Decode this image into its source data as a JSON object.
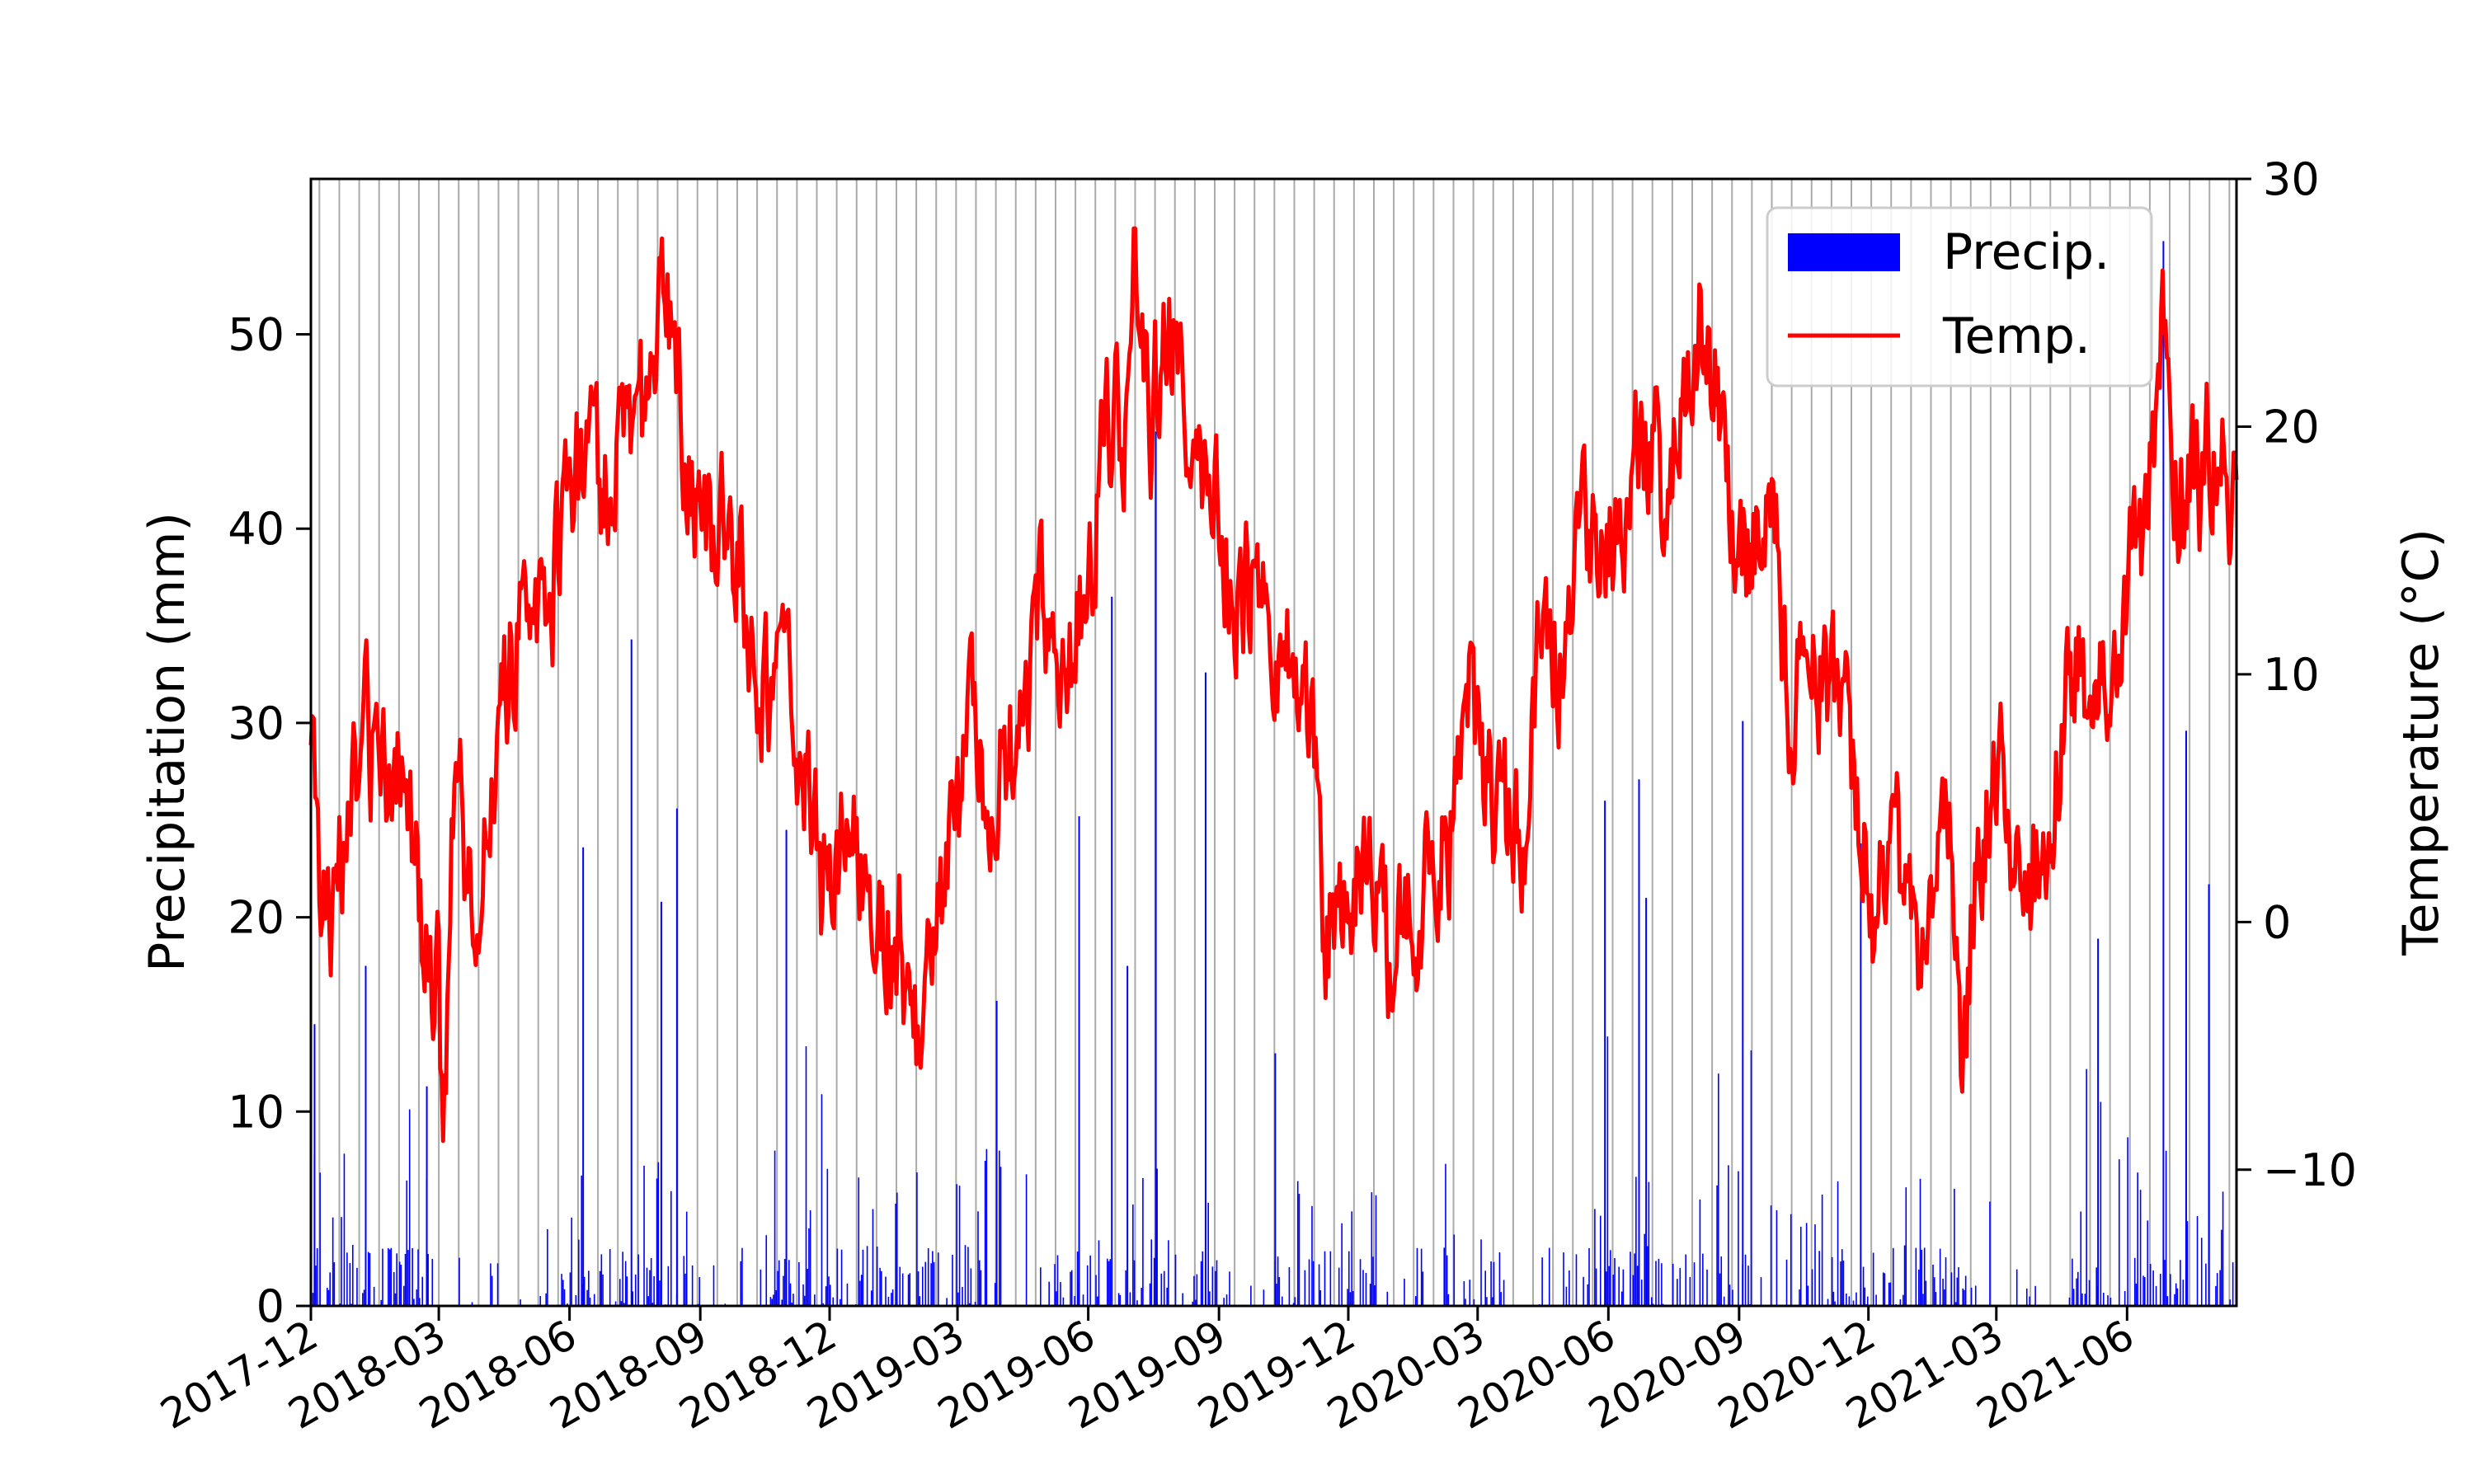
{
  "chart_data": {
    "type": "bar+line",
    "x_type": "date",
    "x_start": "2017-12-01",
    "x_end": "2021-08-17",
    "x_ticks": [
      "2017-12",
      "2018-03",
      "2018-06",
      "2018-09",
      "2018-12",
      "2019-03",
      "2019-06",
      "2019-09",
      "2019-12",
      "2020-03",
      "2020-06",
      "2020-09",
      "2020-12",
      "2021-03",
      "2021-06"
    ],
    "grid": "vertical lines every two weeks",
    "legend_position": "top-right",
    "y_left": {
      "label": "Precipitation (mm)",
      "lim": [
        0,
        58
      ],
      "ticks": [
        0,
        10,
        20,
        30,
        40,
        50
      ]
    },
    "y_right": {
      "label": "Temperature (°C)",
      "lim": [
        -15.5,
        30
      ],
      "ticks": [
        -10,
        0,
        10,
        20,
        30
      ],
      "tick_labels": [
        "−10",
        "0",
        "10",
        "20",
        "30"
      ]
    },
    "series": [
      {
        "name": "Precip.",
        "kind": "bar",
        "axis": "left",
        "color": "#0000ff",
        "daily_approx": true,
        "notable_events": [
          {
            "date": "2017-12-03",
            "value": 14.5
          },
          {
            "date": "2018-01-08",
            "value": 17.5
          },
          {
            "date": "2018-02-20",
            "value": 11.3
          },
          {
            "date": "2018-06-10",
            "value": 23.6
          },
          {
            "date": "2018-07-14",
            "value": 34.3
          },
          {
            "date": "2018-08-04",
            "value": 20.8
          },
          {
            "date": "2018-08-15",
            "value": 25.6
          },
          {
            "date": "2018-10-31",
            "value": 24.5
          },
          {
            "date": "2019-03-28",
            "value": 15.7
          },
          {
            "date": "2019-05-25",
            "value": 25.2
          },
          {
            "date": "2019-06-17",
            "value": 36.5
          },
          {
            "date": "2019-06-28",
            "value": 17.5
          },
          {
            "date": "2019-07-18",
            "value": 45.0
          },
          {
            "date": "2019-08-22",
            "value": 32.6
          },
          {
            "date": "2019-10-10",
            "value": 13.0
          },
          {
            "date": "2020-05-29",
            "value": 26.0
          },
          {
            "date": "2020-06-22",
            "value": 27.1
          },
          {
            "date": "2020-06-27",
            "value": 21.0
          },
          {
            "date": "2020-09-03",
            "value": 30.1
          },
          {
            "date": "2020-11-25",
            "value": 23.8
          },
          {
            "date": "2021-05-11",
            "value": 18.9
          },
          {
            "date": "2021-06-26",
            "value": 54.8
          },
          {
            "date": "2021-07-12",
            "value": 29.6
          },
          {
            "date": "2021-07-28",
            "value": 21.7
          }
        ]
      },
      {
        "name": "Temp.",
        "kind": "line",
        "axis": "right",
        "color": "#ff0000",
        "anchors": [
          [
            "2017-12-01",
            9
          ],
          [
            "2017-12-10",
            0
          ],
          [
            "2017-12-20",
            2
          ],
          [
            "2018-01-10",
            8
          ],
          [
            "2018-01-25",
            4
          ],
          [
            "2018-02-05",
            6
          ],
          [
            "2018-02-15",
            0
          ],
          [
            "2018-02-28",
            -2
          ],
          [
            "2018-03-04",
            -9
          ],
          [
            "2018-03-12",
            6
          ],
          [
            "2018-03-25",
            0
          ],
          [
            "2018-04-10",
            8
          ],
          [
            "2018-05-01",
            14
          ],
          [
            "2018-05-20",
            14
          ],
          [
            "2018-06-10",
            19
          ],
          [
            "2018-06-25",
            18
          ],
          [
            "2018-07-10",
            21
          ],
          [
            "2018-07-25",
            20
          ],
          [
            "2018-08-06",
            27
          ],
          [
            "2018-08-20",
            20
          ],
          [
            "2018-09-03",
            14
          ],
          [
            "2018-09-20",
            17
          ],
          [
            "2018-10-10",
            11
          ],
          [
            "2018-10-25",
            9
          ],
          [
            "2018-11-10",
            7
          ],
          [
            "2018-11-25",
            1
          ],
          [
            "2018-12-15",
            5
          ],
          [
            "2019-01-05",
            1
          ],
          [
            "2019-01-20",
            -1
          ],
          [
            "2019-02-03",
            -5
          ],
          [
            "2019-02-20",
            1
          ],
          [
            "2019-03-10",
            7
          ],
          [
            "2019-03-25",
            6
          ],
          [
            "2019-04-15",
            8
          ],
          [
            "2019-04-28",
            13
          ],
          [
            "2019-05-15",
            9
          ],
          [
            "2019-05-31",
            14
          ],
          [
            "2019-06-10",
            18
          ],
          [
            "2019-06-27",
            21
          ],
          [
            "2019-07-03",
            28
          ],
          [
            "2019-07-15",
            20
          ],
          [
            "2019-07-28",
            25
          ],
          [
            "2019-08-12",
            18
          ],
          [
            "2019-08-28",
            17
          ],
          [
            "2019-09-10",
            14
          ],
          [
            "2019-09-25",
            13
          ],
          [
            "2019-10-15",
            11
          ],
          [
            "2019-10-31",
            9
          ],
          [
            "2019-11-15",
            0
          ],
          [
            "2019-11-30",
            1
          ],
          [
            "2019-12-15",
            3
          ],
          [
            "2019-12-31",
            -2
          ],
          [
            "2020-01-20",
            0
          ],
          [
            "2020-02-10",
            4
          ],
          [
            "2020-02-25",
            9
          ],
          [
            "2020-03-15",
            5
          ],
          [
            "2020-04-01",
            2
          ],
          [
            "2020-04-15",
            12
          ],
          [
            "2020-05-01",
            11
          ],
          [
            "2020-05-20",
            16
          ],
          [
            "2020-06-10",
            15
          ],
          [
            "2020-06-25",
            20
          ],
          [
            "2020-07-10",
            17
          ],
          [
            "2020-07-25",
            21
          ],
          [
            "2020-08-05",
            24
          ],
          [
            "2020-08-20",
            20
          ],
          [
            "2020-09-05",
            15
          ],
          [
            "2020-09-25",
            18
          ],
          [
            "2020-10-05",
            8
          ],
          [
            "2020-10-20",
            12
          ],
          [
            "2020-11-10",
            8
          ],
          [
            "2020-11-25",
            5
          ],
          [
            "2020-12-05",
            0
          ],
          [
            "2020-12-20",
            3
          ],
          [
            "2021-01-10",
            -2
          ],
          [
            "2021-01-28",
            4
          ],
          [
            "2021-02-05",
            -9
          ],
          [
            "2021-02-15",
            4
          ],
          [
            "2021-03-05",
            6
          ],
          [
            "2021-03-20",
            1
          ],
          [
            "2021-04-10",
            5
          ],
          [
            "2021-04-25",
            11
          ],
          [
            "2021-05-10",
            9
          ],
          [
            "2021-05-25",
            13
          ],
          [
            "2021-06-10",
            14
          ],
          [
            "2021-06-22",
            20
          ],
          [
            "2021-06-27",
            25
          ],
          [
            "2021-07-05",
            18
          ],
          [
            "2021-07-20",
            17
          ],
          [
            "2021-08-01",
            20
          ],
          [
            "2021-08-15",
            18
          ]
        ]
      }
    ]
  }
}
